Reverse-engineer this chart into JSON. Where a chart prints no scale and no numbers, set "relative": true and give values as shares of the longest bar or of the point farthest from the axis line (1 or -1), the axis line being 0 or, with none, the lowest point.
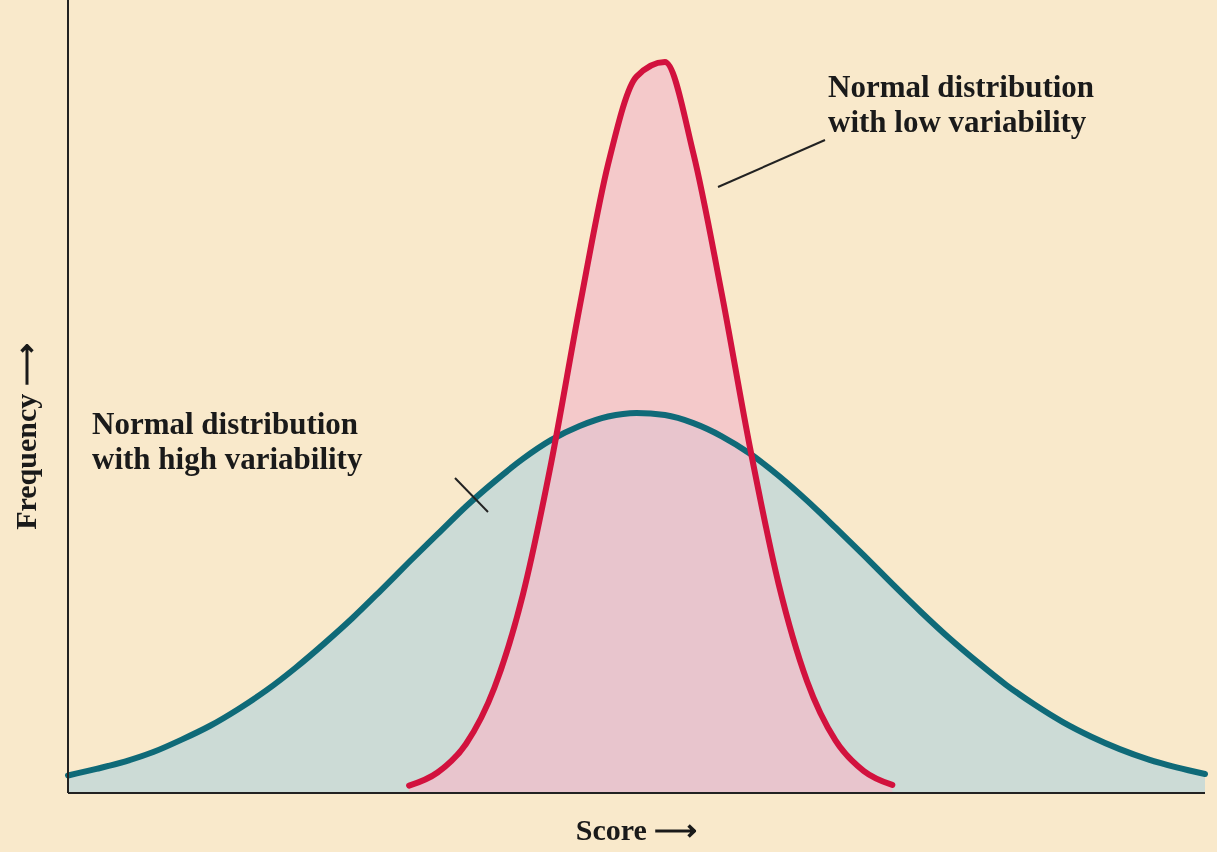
{
  "chart_data": {
    "type": "area",
    "relative": true,
    "xlabel": "Score ⟶",
    "ylabel": "Frequency ⟶",
    "categories": [
      null,
      null,
      null,
      null,
      null,
      null,
      null,
      null,
      null,
      null,
      null,
      null,
      null,
      null,
      null,
      null,
      null,
      null,
      null,
      null,
      null,
      null,
      null,
      null,
      null,
      null,
      null,
      null,
      null,
      null,
      null,
      null,
      null,
      null,
      null,
      null,
      null,
      null,
      null,
      null,
      null
    ],
    "series": [
      {
        "color": "#0f6a78",
        "values": [
          0.024,
          0.033,
          0.043,
          0.056,
          0.073,
          0.092,
          0.115,
          0.141,
          0.171,
          0.204,
          0.239,
          0.277,
          0.316,
          0.354,
          0.392,
          0.426,
          0.457,
          0.483,
          0.502,
          0.515,
          0.52,
          0.517,
          0.506,
          0.488,
          0.464,
          0.434,
          0.4,
          0.363,
          0.325,
          0.286,
          0.248,
          0.212,
          0.179,
          0.148,
          0.121,
          0.097,
          0.077,
          0.06,
          0.046,
          0.035,
          0.026
        ]
      },
      {
        "color": "#d2123e",
        "values": [
          null,
          null,
          null,
          null,
          null,
          null,
          null,
          null,
          null,
          null,
          null,
          null,
          0.01,
          0.028,
          0.067,
          0.144,
          0.271,
          0.452,
          0.665,
          0.86,
          0.98,
          1,
          0.875,
          0.683,
          0.471,
          0.286,
          0.153,
          0.072,
          0.03,
          0.011,
          null,
          null,
          null,
          null,
          null,
          null,
          null,
          null,
          null,
          null,
          null
        ]
      }
    ],
    "annotations": [
      "Normal distribution with low variability",
      "Normal distribution with high variability"
    ],
    "grid": false
  }
}
